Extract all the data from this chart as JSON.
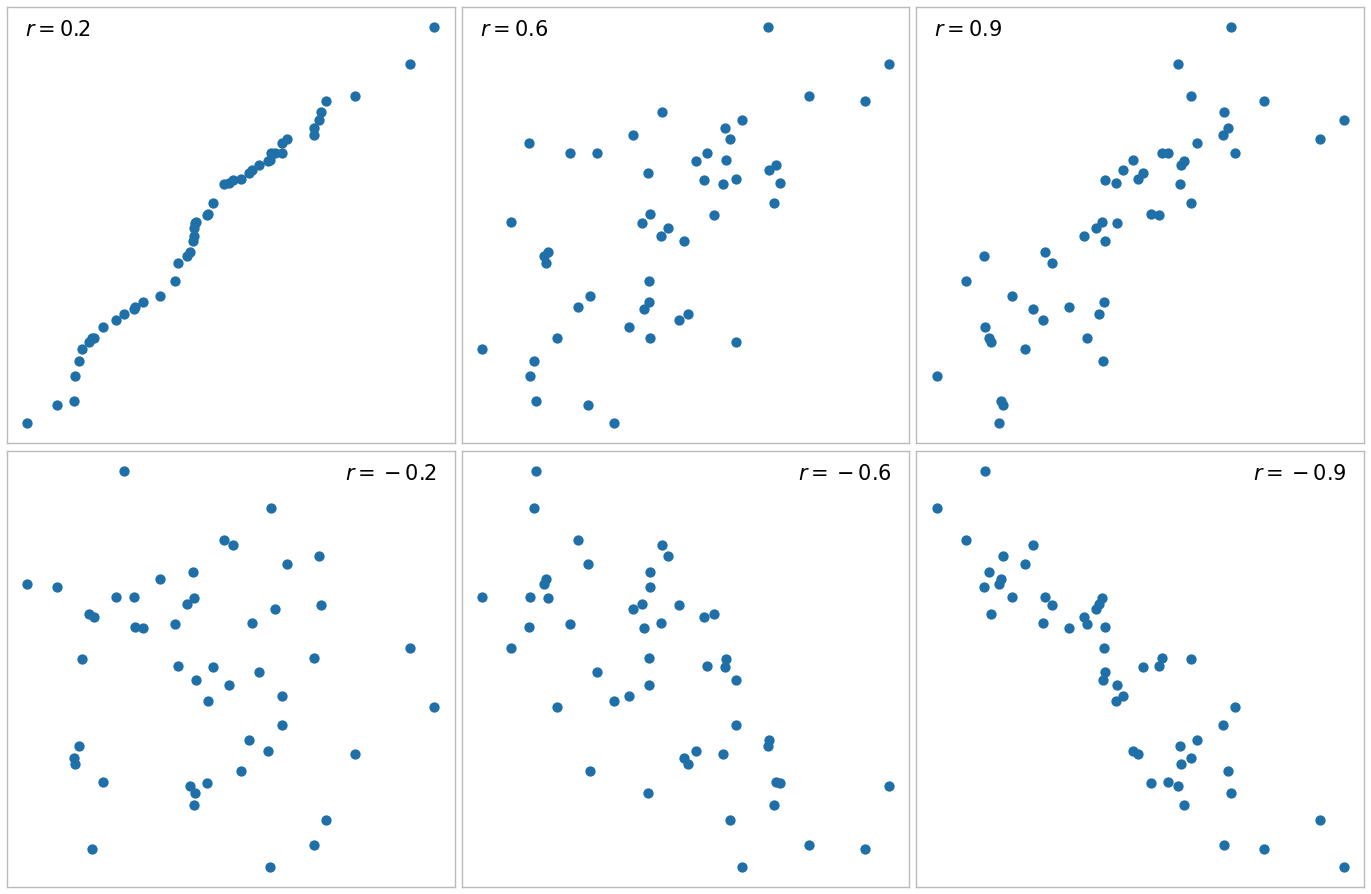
{
  "panels": [
    {
      "r": 0.2,
      "label": "r = 0.2",
      "label_pos": "top_left"
    },
    {
      "r": 0.6,
      "label": "r = 0.6",
      "label_pos": "top_left"
    },
    {
      "r": 0.9,
      "label": "r = 0.9",
      "label_pos": "top_left"
    },
    {
      "r": -0.2,
      "label": "r = −0.2",
      "label_pos": "top_right"
    },
    {
      "r": -0.6,
      "label": "r = −0.6",
      "label_pos": "top_right"
    },
    {
      "r": -0.9,
      "label": "r = −0.9",
      "label_pos": "top_right"
    }
  ],
  "n_points": 50,
  "dot_color": "#1f6fa8",
  "dot_size": 55,
  "dot_alpha": 1.0,
  "background_color": "#ffffff",
  "border_color": "#bbbbbb",
  "fig_width": 13.71,
  "fig_height": 8.94,
  "label_fontsize": 15,
  "seed": 12345
}
